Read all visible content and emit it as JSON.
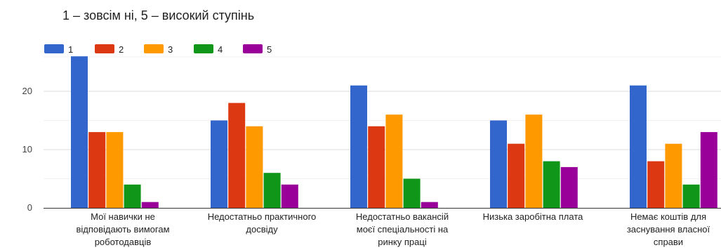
{
  "chart_data": {
    "type": "bar",
    "title": "1 – зовсім ні, 5 – високий ступінь",
    "xlabel": "",
    "ylabel": "",
    "ylim": [
      0,
      26
    ],
    "yticks": [
      0,
      10,
      20
    ],
    "grid": true,
    "legend_position": "top-left",
    "categories": [
      [
        "Мої навички не",
        "відповідають вимогам",
        "роботодавців"
      ],
      [
        "Недостатньо практичного",
        "досвіду"
      ],
      [
        "Недостатньо вакансій",
        "моєї спеціальності на",
        "ринку праці"
      ],
      [
        "Низька заробітна плата"
      ],
      [
        "Немає коштів для",
        "заснування власної",
        "справи"
      ]
    ],
    "series": [
      {
        "name": "1",
        "color": "#3366cc",
        "values": [
          26,
          15,
          21,
          15,
          21
        ]
      },
      {
        "name": "2",
        "color": "#dc3912",
        "values": [
          13,
          18,
          14,
          11,
          8
        ]
      },
      {
        "name": "3",
        "color": "#ff9900",
        "values": [
          13,
          14,
          16,
          16,
          11
        ]
      },
      {
        "name": "4",
        "color": "#109618",
        "values": [
          4,
          6,
          5,
          8,
          4
        ]
      },
      {
        "name": "5",
        "color": "#990099",
        "values": [
          1,
          4,
          1,
          7,
          13
        ]
      }
    ]
  }
}
